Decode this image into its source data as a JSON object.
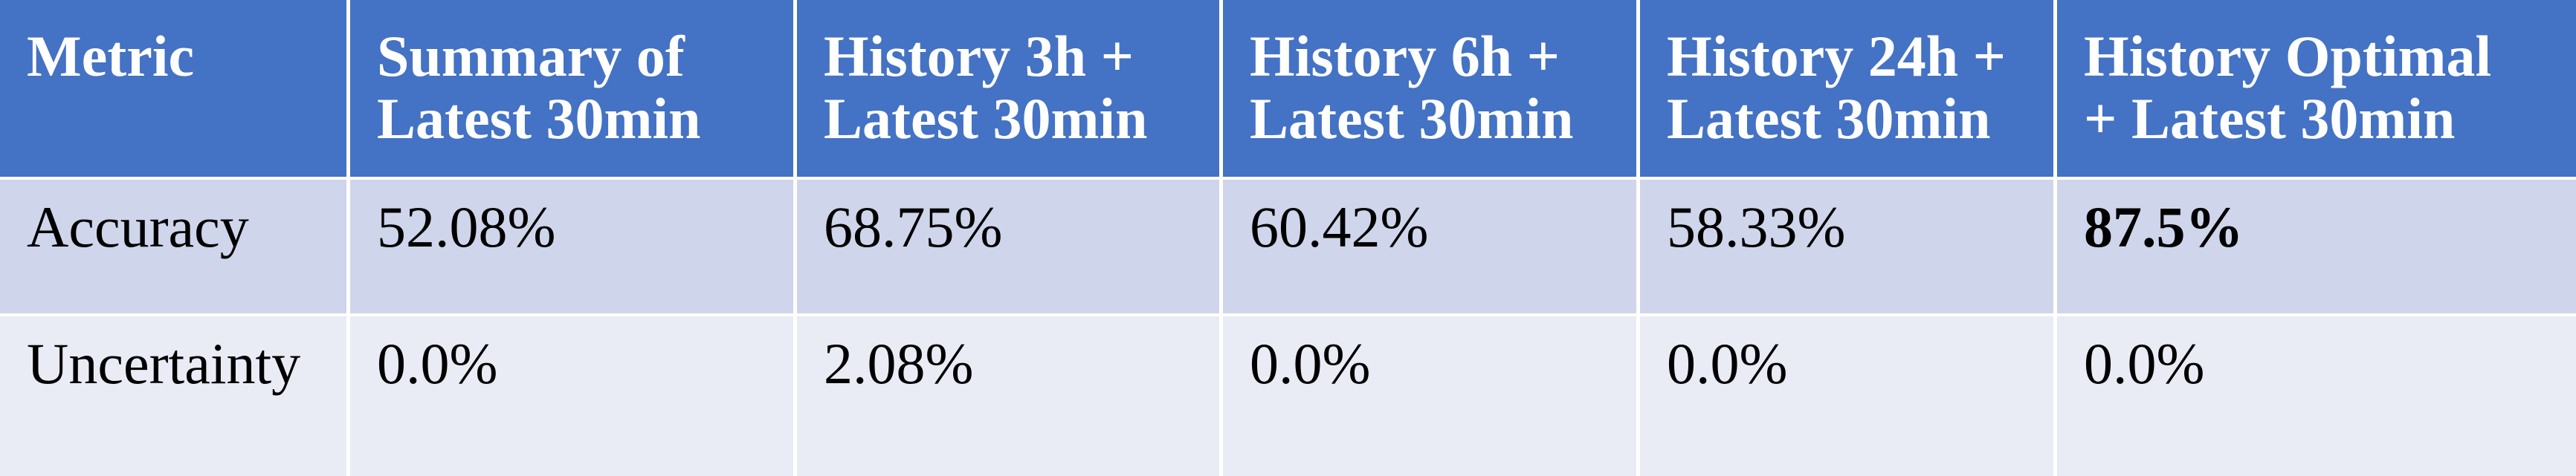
{
  "chart_data": {
    "type": "table",
    "columns": [
      "Metric",
      "Summary of Latest 30min",
      "History 3h + Latest 30min",
      "History 6h + Latest 30min",
      "History 24h + Latest 30min",
      "History Optimal + Latest 30min"
    ],
    "header_lines": [
      [
        "Metric"
      ],
      [
        "Summary of",
        "Latest 30min"
      ],
      [
        "History 3h +",
        "Latest 30min"
      ],
      [
        "History 6h +",
        "Latest 30min"
      ],
      [
        "History 24h +",
        "Latest 30min"
      ],
      [
        "History Optimal",
        "+ Latest 30min"
      ]
    ],
    "rows": [
      {
        "label": "Accuracy",
        "values": [
          "52.08%",
          "68.75%",
          "60.42%",
          "58.33%",
          "87.5%"
        ],
        "bold_index": 4
      },
      {
        "label": "Uncertainty",
        "values": [
          "0.0%",
          "2.08%",
          "0.0%",
          "0.0%",
          "0.0%"
        ]
      }
    ]
  },
  "colors": {
    "header_bg": "#4472c4",
    "header_text": "#ffffff",
    "row_odd_bg": "#cfd5ea",
    "row_even_bg": "#e9ebf5",
    "border": "#ffffff"
  }
}
